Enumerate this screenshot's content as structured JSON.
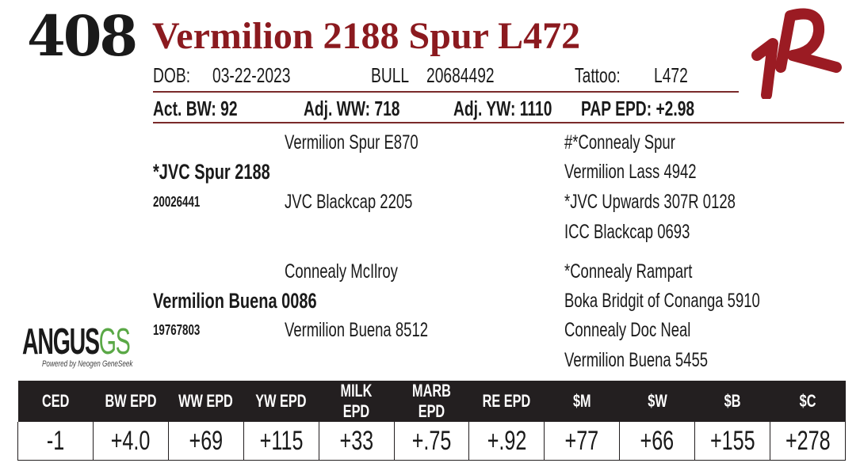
{
  "lot": "408",
  "title": "Vermilion 2188 Spur L472",
  "info": {
    "dob_label": "DOB:",
    "dob": "03-22-2023",
    "sex": "BULL",
    "reg": "20684492",
    "tattoo_label": "Tattoo:",
    "tattoo": "L472"
  },
  "performance": {
    "act_bw": "Act. BW: 92",
    "adj_ww": "Adj. WW: 718",
    "adj_yw": "Adj. YW: 1110",
    "pap": "PAP EPD: +2.98"
  },
  "pedigree": {
    "sire": {
      "name": "*JVC Spur 2188",
      "reg": "20026441",
      "sire": "Vermilion Spur E870",
      "dam": "JVC Blackcap 2205",
      "ss": "#*Connealy Spur",
      "sd": "Vermilion Lass 4942",
      "ds": "*JVC Upwards 307R 0128",
      "dd": "ICC Blackcap 0693"
    },
    "dam": {
      "name": "Vermilion Buena 0086",
      "reg": "19767803",
      "sire": "Connealy McIlroy",
      "dam": "Vermilion Buena 8512",
      "ss": "*Connealy Rampart",
      "sd": "Boka Bridgit of Conanga 5910",
      "ds": "Connealy Doc Neal",
      "dd": "Vermilion Buena 5455"
    }
  },
  "logo": {
    "angus": "ANGUS",
    "gs": "GS",
    "tagline": "Powered by Neogen GeneSeek"
  },
  "brand_logo": "VR",
  "colors": {
    "title": "#8b1a1f",
    "header": "#231f20",
    "gs": "#5aa846"
  },
  "epd": {
    "headers": [
      "CED",
      "BW EPD",
      "WW EPD",
      "YW EPD",
      "MILK EPD",
      "MARB EPD",
      "RE EPD",
      "$M",
      "$W",
      "$B",
      "$C"
    ],
    "values": [
      "-1",
      "+4.0",
      "+69",
      "+115",
      "+33",
      "+.75",
      "+.92",
      "+77",
      "+66",
      "+155",
      "+278"
    ]
  }
}
